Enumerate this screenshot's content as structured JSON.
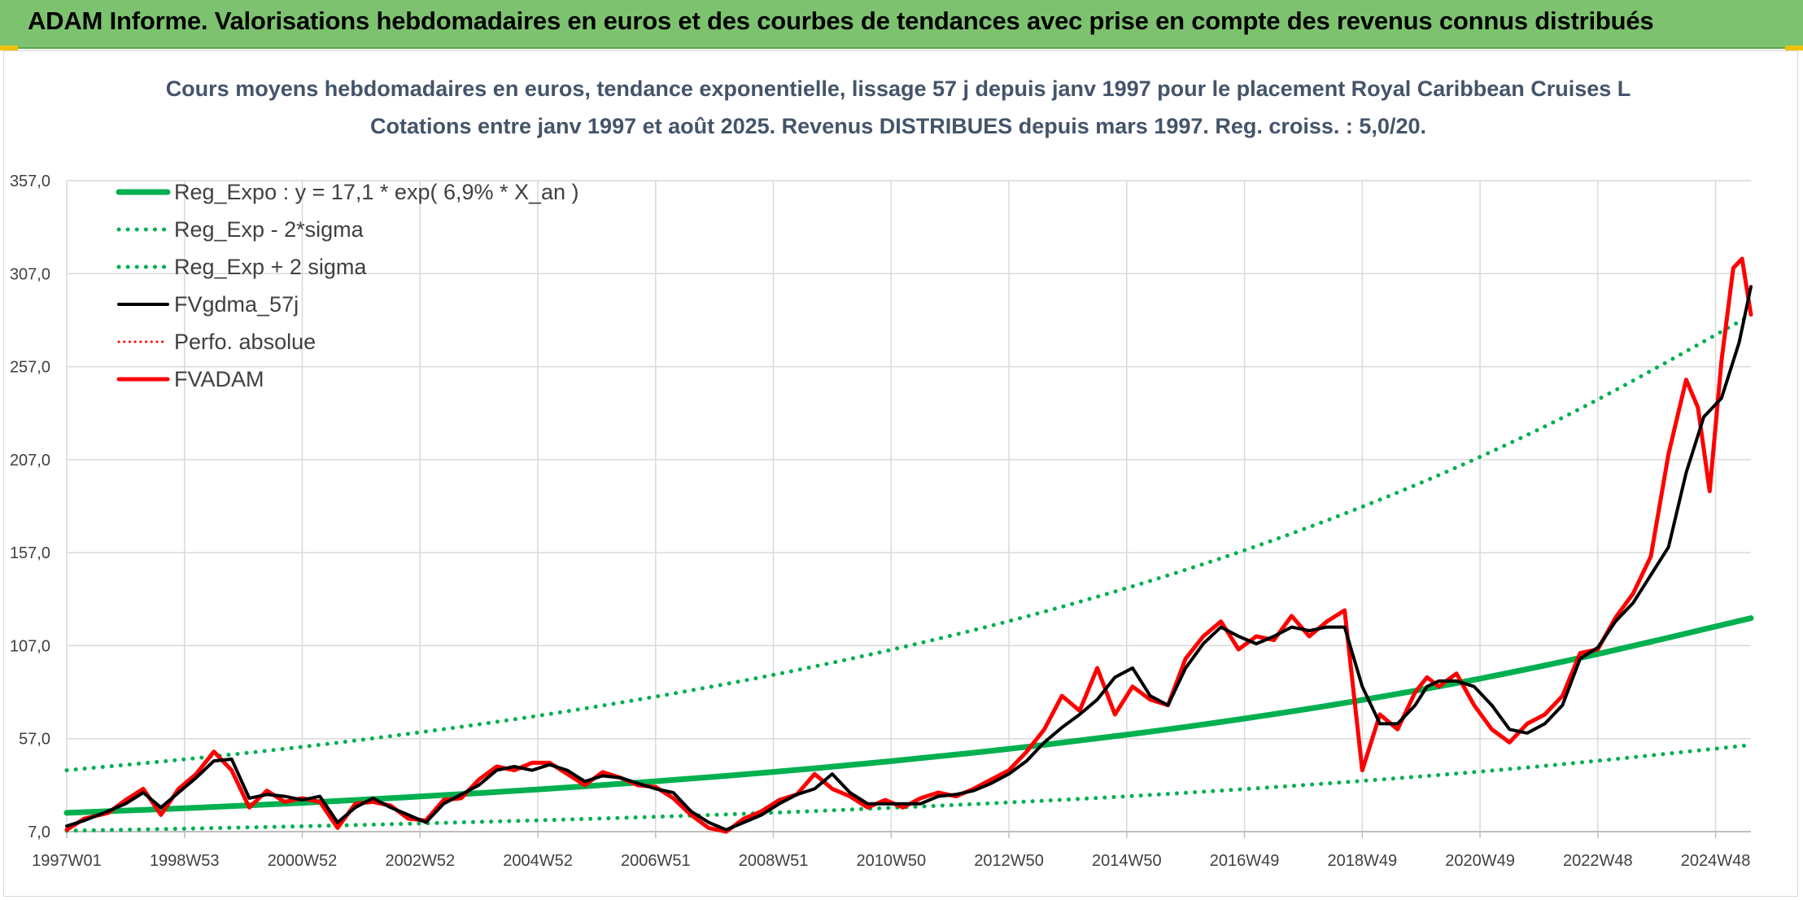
{
  "header": {
    "title": "ADAM Informe. Valorisations hebdomadaires en euros et des courbes de tendances avec prise en compte des revenus connus distribués"
  },
  "colors": {
    "banner": "#7dc36f",
    "reg_expo": "#00b050",
    "fvgdma": "#000000",
    "perfo": "#ff0000",
    "fvadam": "#ff0000",
    "grid": "#d9d9d9"
  },
  "chart_data": {
    "type": "line",
    "title": "Cours moyens hebdomadaires en euros, tendance exponentielle, lissage 57 j depuis janv 1997 pour le placement Royal Caribbean Cruises L",
    "subtitle": "Cotations entre janv 1997 et août 2025. Revenus DISTRIBUES depuis mars 1997. Reg. croiss. : 5,0/20.",
    "xlabel": "",
    "ylabel": "",
    "x_range": [
      1997.0,
      2025.6
    ],
    "ylim": [
      7.0,
      357.0
    ],
    "y_ticks": [
      "7,0",
      "57,0",
      "107,0",
      "157,0",
      "207,0",
      "257,0",
      "307,0",
      "357,0"
    ],
    "y_tick_values": [
      7,
      57,
      107,
      157,
      207,
      257,
      307,
      357
    ],
    "x_ticks": [
      "1997W01",
      "1998W53",
      "2000W52",
      "2002W52",
      "2004W52",
      "2006W51",
      "2008W51",
      "2010W50",
      "2012W50",
      "2014W50",
      "2016W49",
      "2018W49",
      "2020W49",
      "2022W48",
      "2024W48"
    ],
    "x_tick_values": [
      1997.0,
      1999.0,
      2001.0,
      2003.0,
      2005.0,
      2007.0,
      2009.0,
      2011.0,
      2013.0,
      2015.0,
      2017.0,
      2019.0,
      2021.0,
      2023.0,
      2025.0
    ],
    "grid": true,
    "legend_position": "top-left",
    "legend": [
      {
        "label": "Reg_Expo : y = 17,1 * exp( 6,9% *  X_an )",
        "color": "#00b050",
        "style": "solid",
        "width": 7
      },
      {
        "label": "Reg_Exp - 2*sigma",
        "color": "#00b050",
        "style": "dotted",
        "width": 5
      },
      {
        "label": "Reg_Exp + 2 sigma",
        "color": "#00b050",
        "style": "dotted",
        "width": 5
      },
      {
        "label": "FVgdma_57j",
        "color": "#000000",
        "style": "solid",
        "width": 4
      },
      {
        "label": "Perfo. absolue",
        "color": "#ff0000",
        "style": "dotted",
        "width": 3
      },
      {
        "label": "FVADAM",
        "color": "#ff0000",
        "style": "solid",
        "width": 5
      }
    ],
    "series": [
      {
        "name": "Reg_Expo : y = 17,1 * exp( 6,9% *  X_an )",
        "x": [
          1997.0,
          1999.0,
          2001.0,
          2003.0,
          2005.0,
          2007.0,
          2009.0,
          2011.0,
          2013.0,
          2015.0,
          2017.0,
          2019.0,
          2021.0,
          2023.0,
          2025.6
        ],
        "y": [
          17.1,
          19.6,
          22.5,
          25.9,
          29.7,
          34.1,
          39.1,
          44.9,
          51.5,
          59.1,
          67.8,
          77.8,
          89.3,
          102.5,
          121.8
        ]
      },
      {
        "name": "Reg_Exp - 2*sigma",
        "x": [
          1997.0,
          1999.0,
          2001.0,
          2003.0,
          2005.0,
          2007.0,
          2009.0,
          2011.0,
          2013.0,
          2015.0,
          2017.0,
          2019.0,
          2021.0,
          2023.0,
          2025.6
        ],
        "y": [
          7.5,
          8.6,
          9.9,
          11.4,
          13.1,
          15.0,
          17.2,
          19.8,
          22.7,
          26.0,
          29.9,
          34.3,
          39.3,
          45.1,
          53.6
        ]
      },
      {
        "name": "Reg_Exp + 2 sigma",
        "x": [
          1997.0,
          1999.0,
          2001.0,
          2003.0,
          2005.0,
          2007.0,
          2009.0,
          2011.0,
          2013.0,
          2015.0,
          2017.0,
          2019.0,
          2021.0,
          2023.0,
          2025.6
        ],
        "y": [
          40.0,
          45.9,
          52.6,
          60.4,
          69.3,
          79.6,
          91.3,
          104.8,
          120.2,
          138.0,
          158.3,
          181.7,
          208.5,
          239.3,
          284.7
        ]
      },
      {
        "name": "FVgdma_57j",
        "x": [
          1997.0,
          1997.3,
          1997.7,
          1998.0,
          1998.3,
          1998.6,
          1998.9,
          1999.2,
          1999.5,
          1999.8,
          2000.1,
          2000.4,
          2000.7,
          2001.0,
          2001.3,
          2001.6,
          2001.9,
          2002.2,
          2002.5,
          2002.8,
          2003.1,
          2003.4,
          2003.7,
          2004.0,
          2004.3,
          2004.6,
          2004.9,
          2005.2,
          2005.5,
          2005.8,
          2006.1,
          2006.4,
          2006.7,
          2007.0,
          2007.3,
          2007.6,
          2007.9,
          2008.2,
          2008.5,
          2008.8,
          2009.1,
          2009.4,
          2009.7,
          2010.0,
          2010.3,
          2010.6,
          2010.9,
          2011.2,
          2011.5,
          2011.8,
          2012.1,
          2012.4,
          2012.7,
          2013.0,
          2013.3,
          2013.6,
          2013.9,
          2014.2,
          2014.5,
          2014.8,
          2015.1,
          2015.4,
          2015.7,
          2016.0,
          2016.3,
          2016.6,
          2016.9,
          2017.2,
          2017.5,
          2017.8,
          2018.1,
          2018.4,
          2018.7,
          2019.0,
          2019.3,
          2019.6,
          2019.9,
          2020.1,
          2020.3,
          2020.6,
          2020.9,
          2021.2,
          2021.5,
          2021.8,
          2022.1,
          2022.4,
          2022.7,
          2023.0,
          2023.3,
          2023.6,
          2023.9,
          2024.2,
          2024.5,
          2024.8,
          2025.1,
          2025.4,
          2025.6
        ],
        "y": [
          10,
          13,
          18,
          22,
          28,
          20,
          28,
          36,
          45,
          46,
          25,
          27,
          26,
          24,
          26,
          12,
          20,
          25,
          20,
          16,
          12,
          22,
          27,
          32,
          40,
          42,
          40,
          43,
          40,
          34,
          37,
          36,
          33,
          30,
          28,
          18,
          12,
          8,
          12,
          16,
          22,
          27,
          30,
          38,
          28,
          22,
          22,
          22,
          22,
          26,
          27,
          29,
          33,
          38,
          45,
          55,
          63,
          70,
          78,
          90,
          95,
          80,
          75,
          95,
          108,
          117,
          112,
          108,
          112,
          117,
          115,
          117,
          117,
          85,
          65,
          65,
          75,
          85,
          88,
          88,
          85,
          75,
          62,
          60,
          65,
          75,
          100,
          106,
          120,
          130,
          145,
          160,
          200,
          230,
          240,
          270,
          300
        ]
      },
      {
        "name": "FVADAM",
        "x": [
          1997.0,
          1997.3,
          1997.7,
          1998.0,
          1998.3,
          1998.6,
          1998.9,
          1999.2,
          1999.5,
          1999.8,
          2000.1,
          2000.4,
          2000.7,
          2001.0,
          2001.3,
          2001.6,
          2001.9,
          2002.2,
          2002.5,
          2002.8,
          2003.1,
          2003.4,
          2003.7,
          2004.0,
          2004.3,
          2004.6,
          2004.9,
          2005.2,
          2005.5,
          2005.8,
          2006.1,
          2006.4,
          2006.7,
          2007.0,
          2007.3,
          2007.6,
          2007.9,
          2008.2,
          2008.5,
          2008.8,
          2009.1,
          2009.4,
          2009.7,
          2010.0,
          2010.3,
          2010.6,
          2010.9,
          2011.2,
          2011.5,
          2011.8,
          2012.1,
          2012.4,
          2012.7,
          2013.0,
          2013.3,
          2013.6,
          2013.9,
          2014.2,
          2014.5,
          2014.8,
          2015.1,
          2015.4,
          2015.7,
          2016.0,
          2016.3,
          2016.6,
          2016.9,
          2017.2,
          2017.5,
          2017.8,
          2018.1,
          2018.4,
          2018.7,
          2019.0,
          2019.3,
          2019.6,
          2019.9,
          2020.1,
          2020.3,
          2020.6,
          2020.9,
          2021.2,
          2021.5,
          2021.8,
          2022.1,
          2022.4,
          2022.7,
          2023.0,
          2023.3,
          2023.6,
          2023.9,
          2024.2,
          2024.5,
          2024.7,
          2024.9,
          2025.1,
          2025.3,
          2025.45,
          2025.6
        ],
        "y": [
          8,
          14,
          17,
          24,
          30,
          16,
          30,
          38,
          50,
          40,
          20,
          29,
          23,
          25,
          23,
          9,
          22,
          23,
          21,
          14,
          13,
          24,
          25,
          35,
          42,
          40,
          44,
          44,
          38,
          32,
          39,
          36,
          32,
          31,
          25,
          16,
          9,
          7,
          14,
          18,
          24,
          27,
          38,
          30,
          26,
          20,
          24,
          20,
          25,
          28,
          26,
          30,
          35,
          40,
          50,
          62,
          80,
          72,
          95,
          70,
          85,
          78,
          75,
          100,
          112,
          120,
          105,
          112,
          110,
          123,
          112,
          120,
          126,
          40,
          70,
          62,
          82,
          90,
          85,
          92,
          75,
          62,
          55,
          65,
          70,
          80,
          103,
          105,
          122,
          135,
          155,
          210,
          250,
          235,
          190,
          260,
          310,
          315,
          285
        ]
      }
    ]
  }
}
